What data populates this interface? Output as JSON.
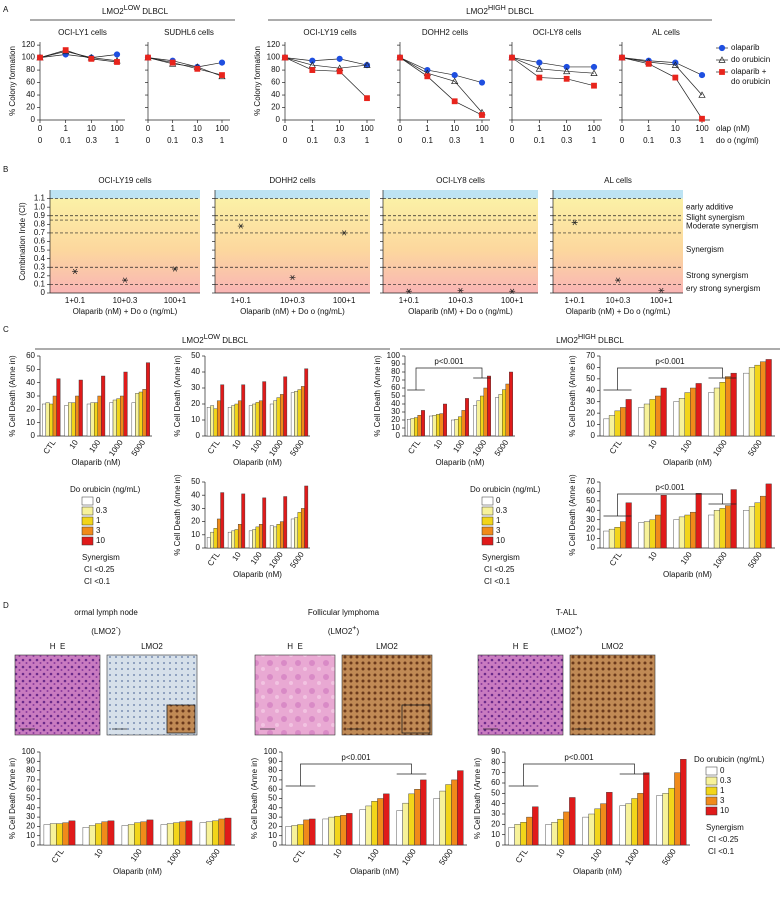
{
  "figure": {
    "panel_labels": [
      "A",
      "B",
      "C",
      "D"
    ],
    "headers": [
      {
        "text": "LMO2",
        "sup": "LOW",
        "rest": " DLBCL"
      },
      {
        "text": "LMO2",
        "sup": "HIGH",
        "rest": " DLBCL"
      },
      {
        "text": "LMO2",
        "sup": "LOW",
        "rest": " DLBCL"
      },
      {
        "text": "LMO2",
        "sup": "HIGH",
        "rest": " DLBCL"
      }
    ],
    "a_x_labels": [
      "olap (nM)",
      "do o (ng/ml)"
    ],
    "a_legend": {
      "names": [
        "olaparib",
        "do orubicin",
        "olaparib + do orubicin"
      ],
      "colors": [
        "#1f4fe0",
        "#1a8a1a",
        "#e8241c"
      ]
    },
    "ci_zones": [
      {
        "from": 0.9,
        "to": 1.1,
        "label": "early additive"
      },
      {
        "from": 0.85,
        "to": 0.9,
        "label": "Slight synergism"
      },
      {
        "from": 0.7,
        "to": 0.85,
        "label": "Moderate synergism"
      },
      {
        "from": 0.3,
        "to": 0.7,
        "label": "Synergism"
      },
      {
        "from": 0.1,
        "to": 0.3,
        "label": "Strong synergism"
      },
      {
        "from": 0,
        "to": 0.1,
        "label": "ery strong synergism"
      }
    ],
    "dox_legend": {
      "title": "Do orubicin (ng/mL)",
      "names": [
        "0",
        "0.3",
        "1",
        "3",
        "10"
      ],
      "colors": [
        "#ffffff",
        "#f7f29a",
        "#f2d51a",
        "#f08a1a",
        "#e01a1a"
      ],
      "synergism": "Synergism",
      "ci": [
        "CI <0.25",
        "CI <0.1"
      ]
    },
    "d_panels": [
      {
        "title": "ormal lymph node",
        "subtitle": {
          "text": "(LMO2",
          "sup": "-",
          "rest": ")"
        },
        "images": [
          "H  E",
          "LMO2"
        ]
      },
      {
        "title": "Follicular lymphoma",
        "subtitle": {
          "text": "(LMO2",
          "sup": "+",
          "rest": ")"
        },
        "images": [
          "H  E",
          "LMO2"
        ]
      },
      {
        "title": "T-ALL",
        "subtitle": {
          "text": "(LMO2",
          "sup": "+",
          "rest": ")"
        },
        "images": [
          "H  E",
          "LMO2"
        ]
      }
    ]
  },
  "chart_data": [
    {
      "type": "line",
      "title": "OCI-LY1 cells",
      "ylabel": "% Colony formation",
      "categories": [
        "0",
        "1",
        "10",
        "100"
      ],
      "categories_2": [
        "0",
        "0.1",
        "0.3",
        "1"
      ],
      "series": [
        {
          "values": [
            100,
            105,
            100,
            105
          ]
        },
        {
          "values": [
            100,
            110,
            100,
            95
          ]
        },
        {
          "values": [
            100,
            112,
            98,
            93
          ]
        }
      ],
      "ylim": [
        0,
        125
      ],
      "yticks": [
        0,
        20,
        40,
        60,
        80,
        100,
        120
      ]
    },
    {
      "type": "line",
      "title": "SUDHL6 cells",
      "ytick_labels": false,
      "categories": [
        "0",
        "1",
        "10",
        "100"
      ],
      "categories_2": [
        "0",
        "0.1",
        "0.3",
        "1"
      ],
      "series": [
        {
          "values": [
            100,
            95,
            85,
            92
          ]
        },
        {
          "values": [
            100,
            90,
            85,
            70
          ]
        },
        {
          "values": [
            100,
            92,
            82,
            72
          ]
        }
      ],
      "ylim": [
        0,
        125
      ],
      "yticks": [
        0,
        20,
        40,
        60,
        80,
        100,
        120
      ]
    },
    {
      "type": "line",
      "title": "OCI-LY19 cells",
      "ylabel": "% Colony formation",
      "categories": [
        "0",
        "1",
        "10",
        "100"
      ],
      "categories_2": [
        "0",
        "0.1",
        "0.3",
        "1"
      ],
      "series": [
        {
          "values": [
            100,
            95,
            98,
            88
          ]
        },
        {
          "values": [
            100,
            88,
            83,
            88
          ]
        },
        {
          "values": [
            100,
            80,
            78,
            35
          ]
        }
      ],
      "ylim": [
        0,
        125
      ],
      "yticks": [
        0,
        20,
        40,
        60,
        80,
        100,
        120
      ]
    },
    {
      "type": "line",
      "title": "DOHH2 cells",
      "ytick_labels": false,
      "categories": [
        "0",
        "1",
        "10",
        "100"
      ],
      "categories_2": [
        "0",
        "0.1",
        "0.3",
        "1"
      ],
      "series": [
        {
          "values": [
            100,
            80,
            72,
            60
          ]
        },
        {
          "values": [
            100,
            75,
            62,
            12
          ]
        },
        {
          "values": [
            100,
            70,
            30,
            8
          ]
        }
      ],
      "ylim": [
        0,
        125
      ],
      "yticks": [
        0,
        20,
        40,
        60,
        80,
        100,
        120
      ]
    },
    {
      "type": "line",
      "title": "OCI-LY8 cells",
      "ytick_labels": false,
      "categories": [
        "0",
        "1",
        "10",
        "100"
      ],
      "categories_2": [
        "0",
        "0.1",
        "0.3",
        "1"
      ],
      "series": [
        {
          "values": [
            100,
            92,
            85,
            85
          ]
        },
        {
          "values": [
            100,
            82,
            78,
            75
          ]
        },
        {
          "values": [
            100,
            68,
            66,
            55
          ]
        }
      ],
      "ylim": [
        0,
        125
      ],
      "yticks": [
        0,
        20,
        40,
        60,
        80,
        100,
        120
      ]
    },
    {
      "type": "line",
      "title": "AL cells",
      "ytick_labels": false,
      "categories": [
        "0",
        "1",
        "10",
        "100"
      ],
      "categories_2": [
        "0",
        "0.1",
        "0.3",
        "1"
      ],
      "series": [
        {
          "values": [
            100,
            95,
            92,
            72
          ]
        },
        {
          "values": [
            100,
            93,
            88,
            40
          ]
        },
        {
          "values": [
            100,
            90,
            68,
            2
          ]
        }
      ],
      "ylim": [
        0,
        125
      ],
      "yticks": [
        0,
        20,
        40,
        60,
        80,
        100,
        120
      ]
    },
    {
      "type": "scatter",
      "title": "OCI-LY19 cells",
      "ylabel": "Combination Inde (CI)",
      "xlabel": "Olaparib (nM) + Do o (ng/mL)",
      "categories": [
        "1+0.1",
        "10+0.3",
        "100+1"
      ],
      "values": [
        0.25,
        0.15,
        0.28
      ],
      "ylim": [
        0,
        1.2
      ],
      "yticks": [
        0,
        0.1,
        0.2,
        0.3,
        0.4,
        0.5,
        0.6,
        0.7,
        0.8,
        0.9,
        {
          "value": 1,
          "label": "1.0"
        },
        1.1
      ]
    },
    {
      "type": "scatter",
      "title": "DOHH2 cells",
      "ytick_labels": false,
      "xlabel": "Olaparib (nM) + Do o (ng/mL)",
      "categories": [
        "1+0.1",
        "10+0.3",
        "100+1"
      ],
      "values": [
        0.78,
        0.18,
        0.7
      ],
      "ylim": [
        0,
        1.2
      ],
      "yticks": [
        0,
        0.1,
        0.2,
        0.3,
        0.4,
        0.5,
        0.6,
        0.7,
        0.8,
        0.9,
        {
          "value": 1,
          "label": "1.0"
        },
        1.1
      ]
    },
    {
      "type": "scatter",
      "title": "OCI-LY8 cells",
      "ytick_labels": false,
      "xlabel": "Olaparib (nM) + Do o (ng/mL)",
      "categories": [
        "1+0.1",
        "10+0.3",
        "100+1"
      ],
      "values": [
        0.02,
        0.03,
        0.02
      ],
      "ylim": [
        0,
        1.2
      ],
      "yticks": [
        0,
        0.1,
        0.2,
        0.3,
        0.4,
        0.5,
        0.6,
        0.7,
        0.8,
        0.9,
        {
          "value": 1,
          "label": "1.0"
        },
        1.1
      ]
    },
    {
      "type": "scatter",
      "title": "AL cells",
      "ytick_labels": false,
      "xlabel": "Olaparib (nM) + Do o (ng/mL)",
      "categories": [
        "1+0.1",
        "10+0.3",
        "100+1"
      ],
      "values": [
        0.82,
        0.15,
        0.03
      ],
      "ylim": [
        0,
        1.2
      ],
      "yticks": [
        0,
        0.1,
        0.2,
        0.3,
        0.4,
        0.5,
        0.6,
        0.7,
        0.8,
        0.9,
        {
          "value": 1,
          "label": "1.0"
        },
        1.1
      ]
    },
    {
      "type": "bar",
      "ylabel": "% Cell Death (Anne in)",
      "xlabel": "Olaparib (nM)",
      "categories": [
        "CTL",
        "10",
        "100",
        "1000",
        "5000"
      ],
      "series": [
        {
          "values": [
            24,
            23,
            24,
            25,
            25
          ]
        },
        {
          "values": [
            25,
            25,
            25,
            27,
            32
          ]
        },
        {
          "values": [
            24,
            25,
            25,
            28,
            33
          ]
        },
        {
          "values": [
            30,
            30,
            30,
            30,
            35
          ]
        },
        {
          "values": [
            43,
            42,
            45,
            48,
            55
          ]
        }
      ],
      "ylim": [
        0,
        60
      ],
      "yticks": [
        0,
        10,
        20,
        30,
        40,
        50,
        60
      ]
    },
    {
      "type": "bar",
      "ylabel": "% Cell Death (Anne in)",
      "xlabel": "Olaparib (nM)",
      "categories": [
        "CTL",
        "10",
        "100",
        "1000",
        "5000"
      ],
      "series": [
        {
          "values": [
            18,
            18,
            19,
            20,
            27
          ]
        },
        {
          "values": [
            19,
            19,
            20,
            22,
            28
          ]
        },
        {
          "values": [
            17,
            20,
            21,
            24,
            29
          ]
        },
        {
          "values": [
            22,
            22,
            22,
            26,
            31
          ]
        },
        {
          "values": [
            32,
            32,
            34,
            37,
            42
          ]
        }
      ],
      "ylim": [
        0,
        50
      ],
      "yticks": [
        0,
        10,
        20,
        30,
        40,
        50
      ]
    },
    {
      "type": "bar",
      "ylabel": "% Cell Death (Anne in)",
      "xlabel": "Olaparib (nM)",
      "annotation": "p<0.001",
      "categories": [
        "CTL",
        "10",
        "100",
        "1000",
        "5000"
      ],
      "series": [
        {
          "values": [
            21,
            25,
            20,
            38,
            48
          ]
        },
        {
          "values": [
            22,
            26,
            21,
            44,
            52
          ]
        },
        {
          "values": [
            23,
            27,
            24,
            50,
            58
          ]
        },
        {
          "values": [
            26,
            28,
            32,
            60,
            65
          ]
        },
        {
          "values": [
            32,
            40,
            47,
            75,
            80
          ]
        }
      ],
      "ylim": [
        0,
        100
      ],
      "yticks": [
        0,
        10,
        20,
        30,
        40,
        50,
        60,
        70,
        80,
        90,
        100
      ]
    },
    {
      "type": "bar",
      "ylabel": "% Cell Death (Anne in)",
      "xlabel": "Olaparib (nM)",
      "annotation": "p<0.001",
      "categories": [
        "CTL",
        "10",
        "100",
        "1000",
        "5000"
      ],
      "series": [
        {
          "values": [
            15,
            25,
            30,
            38,
            55
          ]
        },
        {
          "values": [
            18,
            28,
            33,
            42,
            60
          ]
        },
        {
          "values": [
            22,
            32,
            38,
            47,
            62
          ]
        },
        {
          "values": [
            25,
            35,
            42,
            52,
            65
          ]
        },
        {
          "values": [
            32,
            42,
            46,
            55,
            67
          ]
        }
      ],
      "ylim": [
        0,
        70
      ],
      "yticks": [
        0,
        10,
        20,
        30,
        40,
        50,
        60,
        70
      ]
    },
    {
      "type": "bar",
      "ylabel": "% Cell Death (Anne in)",
      "xlabel": "Olaparib (nM)",
      "categories": [
        "CTL",
        "10",
        "100",
        "1000",
        "5000"
      ],
      "series": [
        {
          "values": [
            8,
            12,
            13,
            17,
            22
          ]
        },
        {
          "values": [
            12,
            13,
            14,
            16,
            23
          ]
        },
        {
          "values": [
            15,
            14,
            16,
            18,
            27
          ]
        },
        {
          "values": [
            22,
            18,
            18,
            20,
            30
          ]
        },
        {
          "values": [
            42,
            41,
            38,
            39,
            47
          ]
        }
      ],
      "ylim": [
        0,
        50
      ],
      "yticks": [
        0,
        10,
        20,
        30,
        40,
        50
      ]
    },
    {
      "type": "bar",
      "ylabel": "% Cell Death (Anne in)",
      "xlabel": "Olaparib (nM)",
      "annotation": "p<0.001",
      "categories": [
        "CTL",
        "10",
        "100",
        "1000",
        "5000"
      ],
      "series": [
        {
          "values": [
            18,
            27,
            30,
            35,
            40
          ]
        },
        {
          "values": [
            20,
            28,
            33,
            40,
            44
          ]
        },
        {
          "values": [
            22,
            30,
            35,
            42,
            48
          ]
        },
        {
          "values": [
            28,
            35,
            38,
            45,
            55
          ]
        },
        {
          "values": [
            48,
            56,
            58,
            62,
            68
          ]
        }
      ],
      "ylim": [
        0,
        70
      ],
      "yticks": [
        0,
        10,
        20,
        30,
        40,
        50,
        60,
        70
      ]
    },
    {
      "type": "bar",
      "ylabel": "% Cell Death (Anne in)",
      "xlabel": "Olaparib (nM)",
      "categories": [
        "CTL",
        "10",
        "100",
        "1000",
        "5000"
      ],
      "series": [
        {
          "values": [
            22,
            19,
            21,
            22,
            24
          ]
        },
        {
          "values": [
            23,
            21,
            22,
            23,
            25
          ]
        },
        {
          "values": [
            23,
            23,
            24,
            24,
            26
          ]
        },
        {
          "values": [
            24,
            25,
            25,
            25,
            28
          ]
        },
        {
          "values": [
            26,
            26,
            27,
            26,
            29
          ]
        }
      ],
      "ylim": [
        0,
        100
      ],
      "yticks": [
        0,
        10,
        20,
        30,
        40,
        50,
        60,
        70,
        80,
        90,
        100
      ]
    },
    {
      "type": "bar",
      "ylabel": "% Cell Death (Anne in)",
      "xlabel": "Olaparib (nM)",
      "annotation": "p<0.001",
      "categories": [
        "CTL",
        "10",
        "100",
        "1000",
        "5000"
      ],
      "series": [
        {
          "values": [
            20,
            28,
            38,
            37,
            50
          ]
        },
        {
          "values": [
            21,
            30,
            42,
            45,
            58
          ]
        },
        {
          "values": [
            22,
            31,
            47,
            55,
            65
          ]
        },
        {
          "values": [
            27,
            32,
            50,
            60,
            70
          ]
        },
        {
          "values": [
            28,
            34,
            55,
            70,
            80
          ]
        }
      ],
      "ylim": [
        0,
        100
      ],
      "yticks": [
        0,
        10,
        20,
        30,
        40,
        50,
        60,
        70,
        80,
        90,
        100
      ]
    },
    {
      "type": "bar",
      "ylabel": "% Cell Death (Anne in)",
      "xlabel": "Olaparib (nM)",
      "annotation": "p<0.001",
      "categories": [
        "CTL",
        "10",
        "100",
        "1000",
        "5000"
      ],
      "series": [
        {
          "values": [
            17,
            20,
            27,
            38,
            48
          ]
        },
        {
          "values": [
            20,
            22,
            30,
            40,
            50
          ]
        },
        {
          "values": [
            22,
            25,
            35,
            45,
            55
          ]
        },
        {
          "values": [
            27,
            32,
            40,
            50,
            70
          ]
        },
        {
          "values": [
            37,
            46,
            51,
            70,
            83
          ]
        }
      ],
      "ylim": [
        0,
        90
      ],
      "yticks": [
        0,
        10,
        20,
        30,
        40,
        50,
        60,
        70,
        80,
        90
      ]
    }
  ]
}
